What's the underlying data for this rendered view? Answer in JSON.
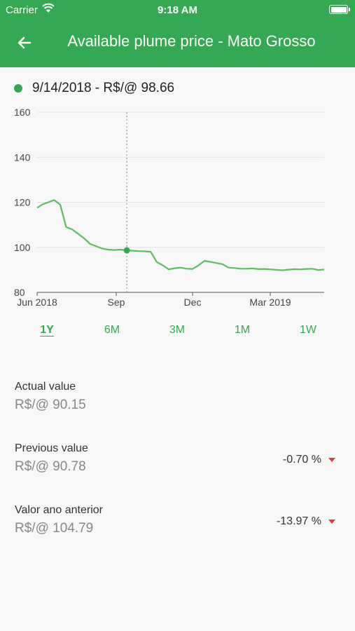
{
  "status_bar": {
    "carrier": "Carrier",
    "time": "9:18 AM"
  },
  "header": {
    "title": "Available plume price - Mato Grosso"
  },
  "selected": {
    "label": "9/14/2018 - R$/@ 98.66"
  },
  "colors": {
    "accent": "#35a853",
    "line": "#5cbf5f",
    "negative": "#e53935"
  },
  "chart_data": {
    "type": "line",
    "x_tick_labels": [
      "Jun 2018",
      "Sep",
      "Dec",
      "Mar 2019"
    ],
    "x": [
      "2018-06-01",
      "2018-06-07",
      "2018-06-14",
      "2018-06-21",
      "2018-06-28",
      "2018-07-05",
      "2018-07-12",
      "2018-07-19",
      "2018-07-26",
      "2018-08-02",
      "2018-08-09",
      "2018-08-16",
      "2018-08-23",
      "2018-08-30",
      "2018-09-06",
      "2018-09-14",
      "2018-09-21",
      "2018-09-28",
      "2018-10-05",
      "2018-10-12",
      "2018-10-19",
      "2018-10-26",
      "2018-11-02",
      "2018-11-09",
      "2018-11-16",
      "2018-11-23",
      "2018-11-30",
      "2018-12-07",
      "2018-12-14",
      "2018-12-21",
      "2018-12-28",
      "2019-01-04",
      "2019-01-11",
      "2019-01-18",
      "2019-01-25",
      "2019-02-01",
      "2019-02-08",
      "2019-02-15",
      "2019-02-22",
      "2019-03-01",
      "2019-03-08",
      "2019-03-15",
      "2019-03-22",
      "2019-03-29",
      "2019-04-05",
      "2019-04-12",
      "2019-04-19",
      "2019-04-26",
      "2019-05-03"
    ],
    "y": [
      117.5,
      119,
      120,
      121,
      119,
      109,
      108,
      106,
      104,
      101.5,
      100.5,
      99.5,
      99,
      98.8,
      99,
      98.66,
      98.5,
      98.3,
      98.2,
      98,
      93.5,
      92,
      90.2,
      90.7,
      91,
      90.5,
      90.4,
      92,
      94,
      93.5,
      93,
      92.5,
      91,
      90.8,
      90.5,
      90.5,
      90.6,
      90.3,
      90.4,
      90.2,
      90,
      89.8,
      90.1,
      90.3,
      90.2,
      90.4,
      90.5,
      89.9,
      90.15
    ],
    "y_ticks": [
      80,
      100,
      120,
      140,
      160
    ],
    "ylim": [
      80,
      160
    ],
    "highlight_x": "2018-09-14",
    "highlight_y": 98.66,
    "grid": "horizontal"
  },
  "ranges": [
    {
      "label": "1Y",
      "active": true
    },
    {
      "label": "6M",
      "active": false
    },
    {
      "label": "3M",
      "active": false
    },
    {
      "label": "1M",
      "active": false
    },
    {
      "label": "1W",
      "active": false
    }
  ],
  "stats": [
    {
      "label": "Actual value",
      "value": "R$/@ 90.15",
      "change": ""
    },
    {
      "label": "Previous value",
      "value": "R$/@ 90.78",
      "change": "-0.70 %"
    },
    {
      "label": "Valor ano anterior",
      "value": "R$/@ 104.79",
      "change": "-13.97 %"
    }
  ]
}
